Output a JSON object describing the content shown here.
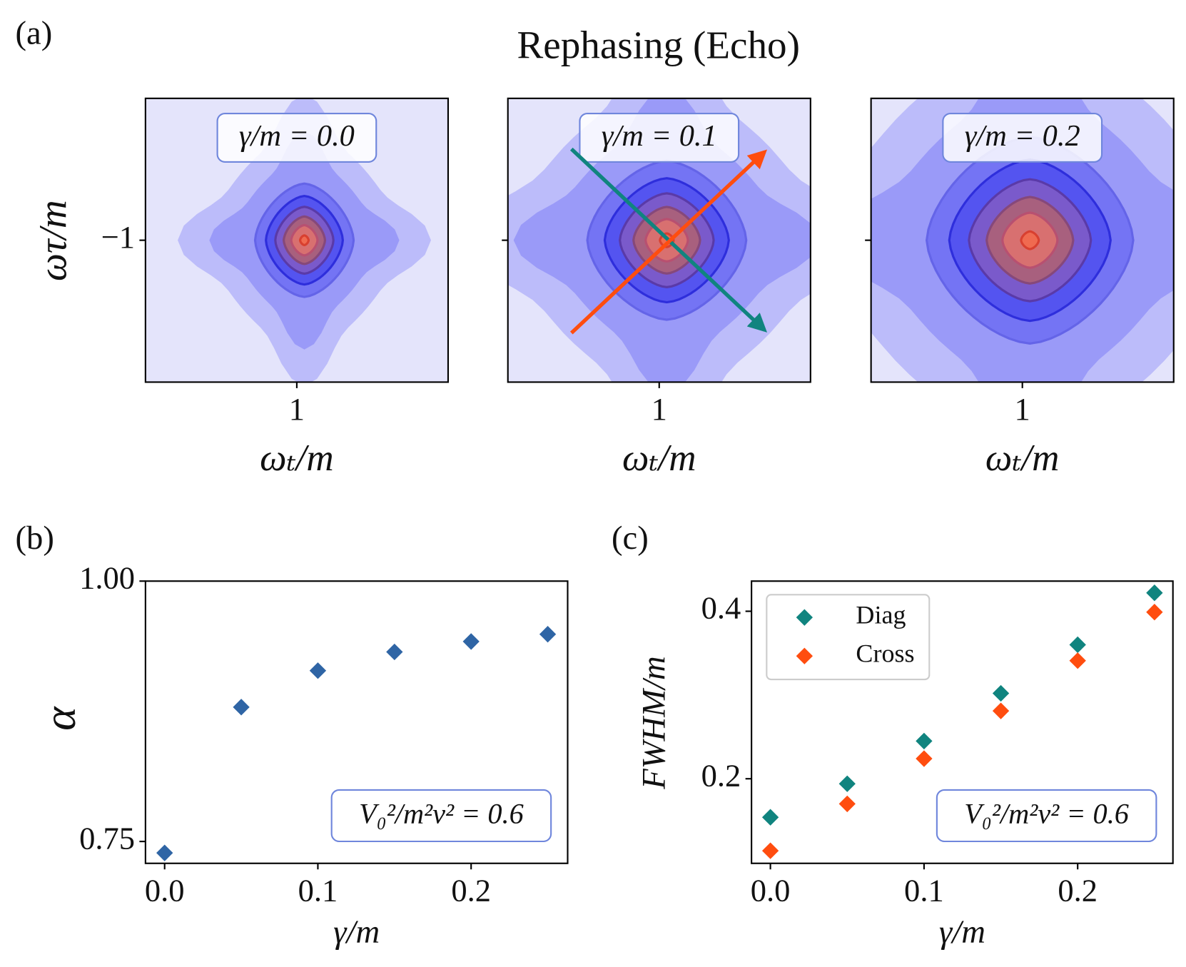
{
  "title": "Rephasing (Echo)",
  "chart_data": [
    {
      "type": "contour",
      "panel_label": "(a)",
      "annotation": "γ/m = 0.0",
      "xlabel": "ωₜ/m",
      "ylabel": "ωτ/m",
      "xlim": [
        0.5,
        1.5
      ],
      "ylim": [
        -1.5,
        -0.5
      ],
      "xticks": [
        1
      ],
      "yticks": [
        {
          "value": -1,
          "label": "−1"
        }
      ],
      "ytick_labels": true
    },
    {
      "type": "contour",
      "annotation": "γ/m = 0.1",
      "xlabel": "ωₜ/m",
      "xlim": [
        0.5,
        1.5
      ],
      "ylim": [
        -1.5,
        -0.5
      ],
      "xticks": [
        1
      ],
      "yticks": [
        -1
      ],
      "ytick_labels": false
    },
    {
      "type": "contour",
      "annotation": "γ/m = 0.2",
      "xlabel": "ωₜ/m",
      "xlim": [
        0.5,
        1.5
      ],
      "ylim": [
        -1.5,
        -0.5
      ],
      "xticks": [
        1
      ],
      "yticks": [
        -1
      ],
      "ytick_labels": false
    },
    {
      "type": "scatter",
      "panel_label": "(b)",
      "xlabel": "γ/m",
      "ylabel": "α",
      "annotation": "V₀²/m²v² = 0.6",
      "xlim": [
        -0.0125,
        0.263
      ],
      "ylim": [
        0.729,
        1.0
      ],
      "xticks": [
        {
          "value": 0,
          "label": "0.0"
        },
        0.1,
        0.2
      ],
      "yticks": [
        0.75,
        {
          "value": 1,
          "label": "1.00"
        }
      ],
      "x": [
        0,
        0.05,
        0.1,
        0.15,
        0.2,
        0.25
      ],
      "series": [
        {
          "color": "#2f65a5",
          "values": [
            0.739,
            0.879,
            0.914,
            0.932,
            0.942,
            0.949
          ]
        }
      ]
    },
    {
      "type": "scatter",
      "panel_label": "(c)",
      "xlabel": "γ/m",
      "ylabel": "FWHM/m",
      "annotation": "V₀²/m²v² = 0.6",
      "xlim": [
        -0.0123,
        0.262
      ],
      "ylim": [
        0.099,
        0.436
      ],
      "xticks": [
        {
          "value": 0,
          "label": "0.0"
        },
        0.1,
        0.2
      ],
      "yticks": [
        0.2,
        0.4
      ],
      "x": [
        0,
        0.05,
        0.1,
        0.15,
        0.2,
        0.25
      ],
      "legend": "upper left",
      "series": [
        {
          "name": "Diag",
          "color": "#10847f",
          "values": [
            0.154,
            0.194,
            0.245,
            0.302,
            0.36,
            0.422
          ]
        },
        {
          "name": "Cross",
          "color": "#ff4d0f",
          "values": [
            0.114,
            0.17,
            0.224,
            0.281,
            0.341,
            0.399
          ]
        }
      ]
    }
  ]
}
